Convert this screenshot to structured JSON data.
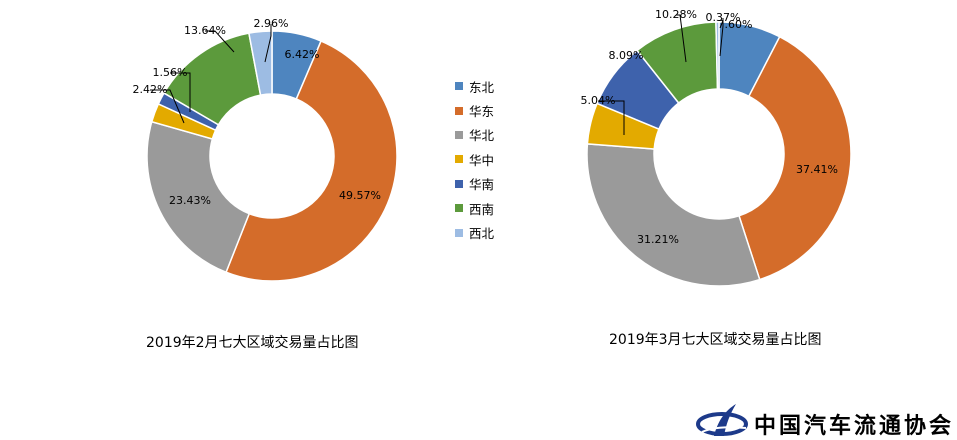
{
  "legend": {
    "items": [
      {
        "label": "东北",
        "color": "#4e85bf"
      },
      {
        "label": "华东",
        "color": "#d46c2a"
      },
      {
        "label": "华北",
        "color": "#9a9a9a"
      },
      {
        "label": "华中",
        "color": "#e3aa00"
      },
      {
        "label": "华南",
        "color": "#3e62ac"
      },
      {
        "label": "西南",
        "color": "#5c9a3c"
      },
      {
        "label": "西北",
        "color": "#9dbce3"
      }
    ]
  },
  "logo": {
    "text": "中国汽车流通协会",
    "mark_color": "#1d3a8a"
  },
  "chart_data": [
    {
      "type": "pie",
      "donut": true,
      "title": "2019年2月七大区域交易量占比图",
      "categories": [
        "东北",
        "华东",
        "华北",
        "华中",
        "华南",
        "西南",
        "西北"
      ],
      "values": [
        6.42,
        49.57,
        23.43,
        2.42,
        1.56,
        13.64,
        2.96
      ],
      "labels": [
        "6.42%",
        "49.57%",
        "23.43%",
        "2.42%",
        "1.56%",
        "13.64%",
        "2.96%"
      ]
    },
    {
      "type": "pie",
      "donut": true,
      "title": "2019年3月七大区域交易量占比图",
      "categories": [
        "东北",
        "华东",
        "华北",
        "华中",
        "华南",
        "西南",
        "西北"
      ],
      "values": [
        7.6,
        37.41,
        31.21,
        5.04,
        8.09,
        10.28,
        0.37
      ],
      "labels": [
        "7.60%",
        "37.41%",
        "31.21%",
        "5.04%",
        "8.09%",
        "10.28%",
        "0.37%"
      ]
    }
  ]
}
